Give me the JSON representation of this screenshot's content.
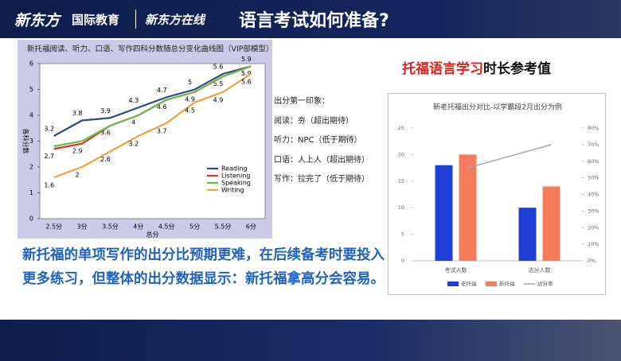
{
  "header": {
    "logo": "新东方",
    "brand": "国际教育",
    "logo2": "新东方在线",
    "title": "语言考试如何准备?"
  },
  "notes": [
    "出分第一印象：",
    "阅读：夯（超出期待）",
    "听力：NPC（低于期待）",
    "口语：人上人（超出期待）",
    "写作：拉完了（低于期待）"
  ],
  "heading": {
    "highlight": "托福语言学习",
    "rest": "时长参考值"
  },
  "summary": "新托福的单项写作的出分比预期更难，在后续备考时要投入更多练习，但整体的出分数据显示：新托福拿高分会容易。",
  "chart_data": [
    {
      "type": "line",
      "title": "新托福阅读、听力、口语、写作四科分数随总分变化曲线图（VIP部模型）",
      "x_label": "总分",
      "y_label": "各科分数",
      "categories": [
        "2.5分",
        "3分",
        "3.5分",
        "4分",
        "4.5分",
        "5分",
        "5.5分",
        "6分"
      ],
      "ylim": [
        0,
        6
      ],
      "yticks": [
        0,
        1,
        2,
        3,
        4,
        5,
        6
      ],
      "legend": "lower-right",
      "series": [
        {
          "name": "Reading",
          "color": "#2f4b7c",
          "values": [
            3.2,
            3.8,
            3.9,
            4.3,
            4.7,
            5,
            5.6,
            5.9
          ]
        },
        {
          "name": "Listening",
          "color": "#d9342b",
          "values": [
            2.7,
            2.9,
            3.6,
            4,
            4.6,
            4.9,
            5.5,
            5.9
          ]
        },
        {
          "name": "Speaking",
          "color": "#6fb84a",
          "values": [
            2.8,
            3,
            3.6,
            4,
            4.6,
            4.9,
            5.5,
            5.9
          ]
        },
        {
          "name": "Writing",
          "color": "#f2a03a",
          "values": [
            1.6,
            2,
            2.6,
            3.2,
            3.7,
            4.5,
            4.9,
            5.6
          ]
        }
      ]
    },
    {
      "type": "bar",
      "title": "新老托福出分对比-以学霸段2月出分为例",
      "categories": [
        "考试人数",
        "达分人数"
      ],
      "ylim": [
        0,
        25
      ],
      "yticks": [
        0,
        5,
        10,
        15,
        20,
        25
      ],
      "y2lim": [
        0,
        80
      ],
      "y2ticks": [
        {
          "value": 0,
          "label": "0%"
        },
        {
          "value": 10,
          "label": "10%"
        },
        {
          "value": 20,
          "label": "20%"
        },
        {
          "value": 30,
          "label": "30%"
        },
        {
          "value": 40,
          "label": "40%"
        },
        {
          "value": 50,
          "label": "50%"
        },
        {
          "value": 60,
          "label": "60%"
        },
        {
          "value": 70,
          "label": "70%"
        },
        {
          "value": 80,
          "label": "80%"
        }
      ],
      "legend": "bottom",
      "series": [
        {
          "name": "老托福",
          "color": "#1d3fd6",
          "values": [
            18,
            10
          ]
        },
        {
          "name": "新托福",
          "color": "#f47c5a",
          "values": [
            20,
            14
          ]
        },
        {
          "name": "达分率",
          "color": "#a6a6a6",
          "axis": "y2",
          "type": "line",
          "values": [
            56,
            70
          ]
        }
      ]
    }
  ]
}
